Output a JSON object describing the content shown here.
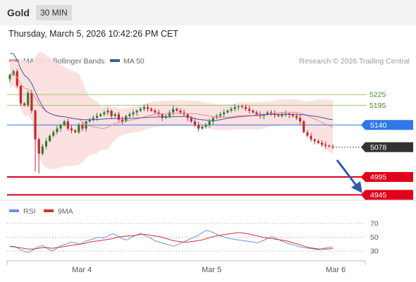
{
  "header": {
    "symbol": "Gold",
    "timeframe": "30 MIN"
  },
  "timestamp": "Thursday, March 5, 2026 10:42:26 PM CET",
  "legend": {
    "ma20": "MA 20 + Bollinger Bands",
    "ma50": "MA 50",
    "credit": "Research © 2026 Trading Central"
  },
  "rsi_legend": {
    "rsi": "RSI",
    "ma": "9MA"
  },
  "colors": {
    "ma20": "#e98c8c",
    "ma50": "#3a5ba8",
    "bands": "#fbdcdc",
    "up": "#2e7d32",
    "down": "#c62828",
    "resistance": "#9bc86f",
    "support": "#e0001b",
    "pivot": "#2f78e8",
    "rsi": "#6f8fe0",
    "rsi_ma": "#d43030"
  },
  "chart_data": [
    {
      "type": "candlestick",
      "ylim": [
        4930,
        5300
      ],
      "x_ticks": [
        "Mar 4",
        "Mar 5",
        "Mar 6"
      ],
      "closes": [
        5280,
        5290,
        5250,
        5200,
        5195,
        5230,
        5180,
        5100,
        5060,
        5080,
        5095,
        5110,
        5120,
        5130,
        5140,
        5150,
        5130,
        5125,
        5120,
        5140,
        5130,
        5150,
        5155,
        5160,
        5165,
        5170,
        5175,
        5180,
        5165,
        5170,
        5155,
        5150,
        5165,
        5170,
        5175,
        5180,
        5185,
        5190,
        5185,
        5180,
        5175,
        5170,
        5160,
        5165,
        5175,
        5185,
        5180,
        5175,
        5170,
        5160,
        5150,
        5140,
        5130,
        5135,
        5140,
        5150,
        5160,
        5165,
        5170,
        5175,
        5180,
        5185,
        5190,
        5192,
        5190,
        5185,
        5180,
        5175,
        5170,
        5165,
        5170,
        5175,
        5172,
        5168,
        5165,
        5170,
        5172,
        5168,
        5165,
        5160,
        5150,
        5120,
        5110,
        5100,
        5095,
        5090,
        5085,
        5082,
        5080,
        5078
      ],
      "levels": [
        {
          "label": "5225",
          "value": 5225,
          "kind": "resistance"
        },
        {
          "label": "5195",
          "value": 5195,
          "kind": "resistance"
        },
        {
          "label": "5140",
          "value": 5140,
          "kind": "pivot"
        },
        {
          "label": "5078",
          "value": 5078,
          "kind": "last"
        },
        {
          "label": "4995",
          "value": 4995,
          "kind": "support"
        },
        {
          "label": "4945",
          "value": 4945,
          "kind": "support"
        }
      ],
      "series": [
        {
          "name": "MA 20 + Bollinger Bands"
        },
        {
          "name": "MA 50"
        }
      ]
    },
    {
      "type": "line",
      "y_ticks": [
        70,
        50,
        30
      ],
      "ylim": [
        20,
        75
      ],
      "series": [
        {
          "name": "RSI",
          "values": [
            36,
            37,
            33,
            30,
            28,
            32,
            36,
            38,
            34,
            30,
            34,
            38,
            40,
            43,
            42,
            40,
            44,
            46,
            48,
            50,
            49,
            52,
            55,
            52,
            48,
            46,
            50,
            53,
            56,
            52,
            49,
            45,
            43,
            41,
            39,
            37,
            40,
            43,
            46,
            49,
            52,
            56,
            60,
            58,
            55,
            52,
            50,
            48,
            47,
            46,
            45,
            44,
            43,
            42,
            45,
            48,
            51,
            48,
            45,
            42,
            40,
            38,
            36,
            35,
            34,
            33,
            32,
            34,
            35,
            36
          ]
        },
        {
          "name": "9MA",
          "values": [
            37,
            36,
            35,
            34,
            33,
            33,
            34,
            35,
            35,
            34,
            35,
            36,
            37,
            38,
            39,
            40,
            41,
            43,
            44,
            45,
            46,
            47,
            48,
            50,
            51,
            52,
            52,
            53,
            54,
            54,
            53,
            52,
            51,
            49,
            47,
            45,
            44,
            43,
            43,
            44,
            45,
            46,
            48,
            50,
            52,
            53,
            54,
            55,
            56,
            57,
            56,
            55,
            53,
            52,
            50,
            49,
            48,
            47,
            46,
            45,
            43,
            41,
            39,
            37,
            35,
            34,
            33,
            33,
            33,
            34
          ]
        }
      ]
    }
  ]
}
